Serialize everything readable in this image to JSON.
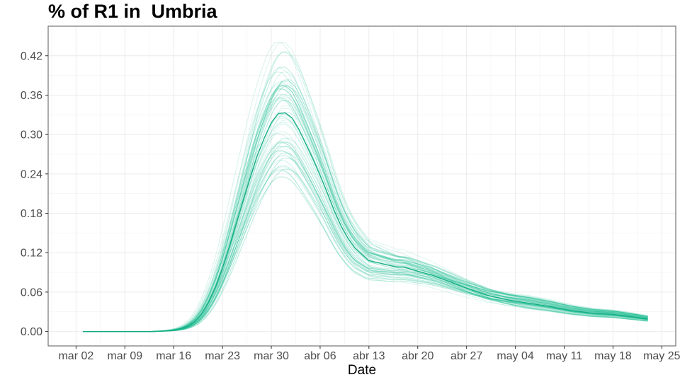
{
  "chart_data": {
    "type": "line",
    "title": "% of R1 in  Umbria",
    "xlabel": "Date",
    "ylabel": "",
    "x_ticks": [
      "mar 02",
      "mar 09",
      "mar 16",
      "mar 23",
      "mar 30",
      "abr 06",
      "abr 13",
      "abr 20",
      "abr 27",
      "may 04",
      "may 11",
      "may 18",
      "may 25"
    ],
    "x_tick_dates": [
      "2020-03-02",
      "2020-03-09",
      "2020-03-16",
      "2020-03-23",
      "2020-03-30",
      "2020-04-06",
      "2020-04-13",
      "2020-04-20",
      "2020-04-27",
      "2020-05-04",
      "2020-05-11",
      "2020-05-18",
      "2020-05-25"
    ],
    "xlim": [
      "2020-02-27",
      "2020-05-27"
    ],
    "y_ticks": [
      0.0,
      0.06,
      0.12,
      0.18,
      0.24,
      0.3,
      0.36,
      0.42
    ],
    "y_tick_labels": [
      "0.00",
      "0.06",
      "0.12",
      "0.18",
      "0.24",
      "0.30",
      "0.36",
      "0.42"
    ],
    "ylim": [
      -0.022,
      0.465
    ],
    "grid": true,
    "line_color": "#1fbf93",
    "main_line_color": "#14ad84",
    "series_count": 60,
    "central_series": {
      "x": [
        "2020-03-03",
        "2020-03-09",
        "2020-03-13",
        "2020-03-15",
        "2020-03-16",
        "2020-03-17",
        "2020-03-18",
        "2020-03-19",
        "2020-03-20",
        "2020-03-21",
        "2020-03-22",
        "2020-03-23",
        "2020-03-24",
        "2020-03-25",
        "2020-03-26",
        "2020-03-27",
        "2020-03-28",
        "2020-03-29",
        "2020-03-30",
        "2020-03-31",
        "2020-04-01",
        "2020-04-02",
        "2020-04-03",
        "2020-04-04",
        "2020-04-05",
        "2020-04-06",
        "2020-04-07",
        "2020-04-08",
        "2020-04-09",
        "2020-04-10",
        "2020-04-11",
        "2020-04-13",
        "2020-04-15",
        "2020-04-17",
        "2020-04-18",
        "2020-04-20",
        "2020-04-22",
        "2020-04-24",
        "2020-04-27",
        "2020-04-30",
        "2020-05-03",
        "2020-05-06",
        "2020-05-09",
        "2020-05-12",
        "2020-05-15",
        "2020-05-18",
        "2020-05-21",
        "2020-05-23"
      ],
      "y": [
        0.0,
        0.0,
        0.0,
        0.001,
        0.002,
        0.004,
        0.008,
        0.015,
        0.027,
        0.045,
        0.068,
        0.097,
        0.13,
        0.165,
        0.2,
        0.235,
        0.268,
        0.295,
        0.318,
        0.332,
        0.333,
        0.325,
        0.307,
        0.285,
        0.262,
        0.238,
        0.212,
        0.185,
        0.161,
        0.142,
        0.127,
        0.108,
        0.103,
        0.098,
        0.098,
        0.092,
        0.086,
        0.078,
        0.066,
        0.055,
        0.048,
        0.043,
        0.038,
        0.032,
        0.028,
        0.026,
        0.022,
        0.019
      ]
    }
  }
}
